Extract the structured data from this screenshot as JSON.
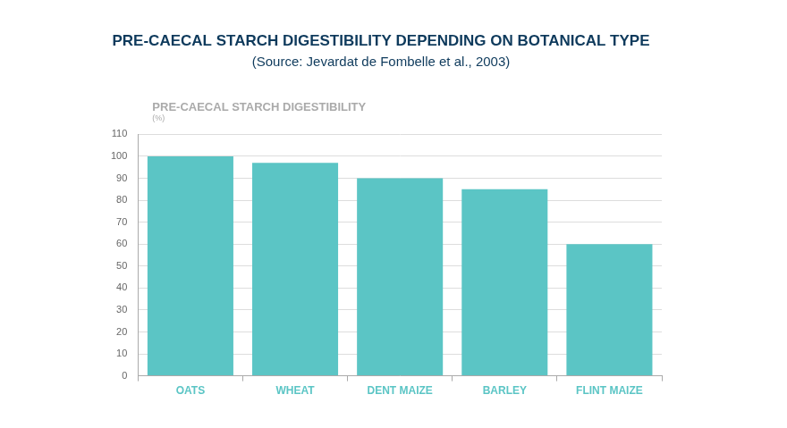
{
  "chart_data": {
    "type": "bar",
    "title": "PRE-CAECAL STARCH DIGESTIBILITY DEPENDING ON BOTANICAL TYPE",
    "subtitle": "(Source: Jevardat de Fombelle et al., 2003)",
    "y_label": [
      "PRE-CAECAL STARCH DIGESTIBILITY",
      "(%)"
    ],
    "categories": [
      "OATS",
      "WHEAT",
      "DENT MAIZE",
      "BARLEY",
      "FLINT MAIZE"
    ],
    "values": [
      100,
      97,
      90,
      85,
      60
    ],
    "color": "#5bc5c5",
    "ylim": [
      0,
      110
    ],
    "yticks": [
      0,
      10,
      20,
      30,
      40,
      50,
      60,
      70,
      80,
      90,
      100,
      110
    ],
    "grid": true
  }
}
